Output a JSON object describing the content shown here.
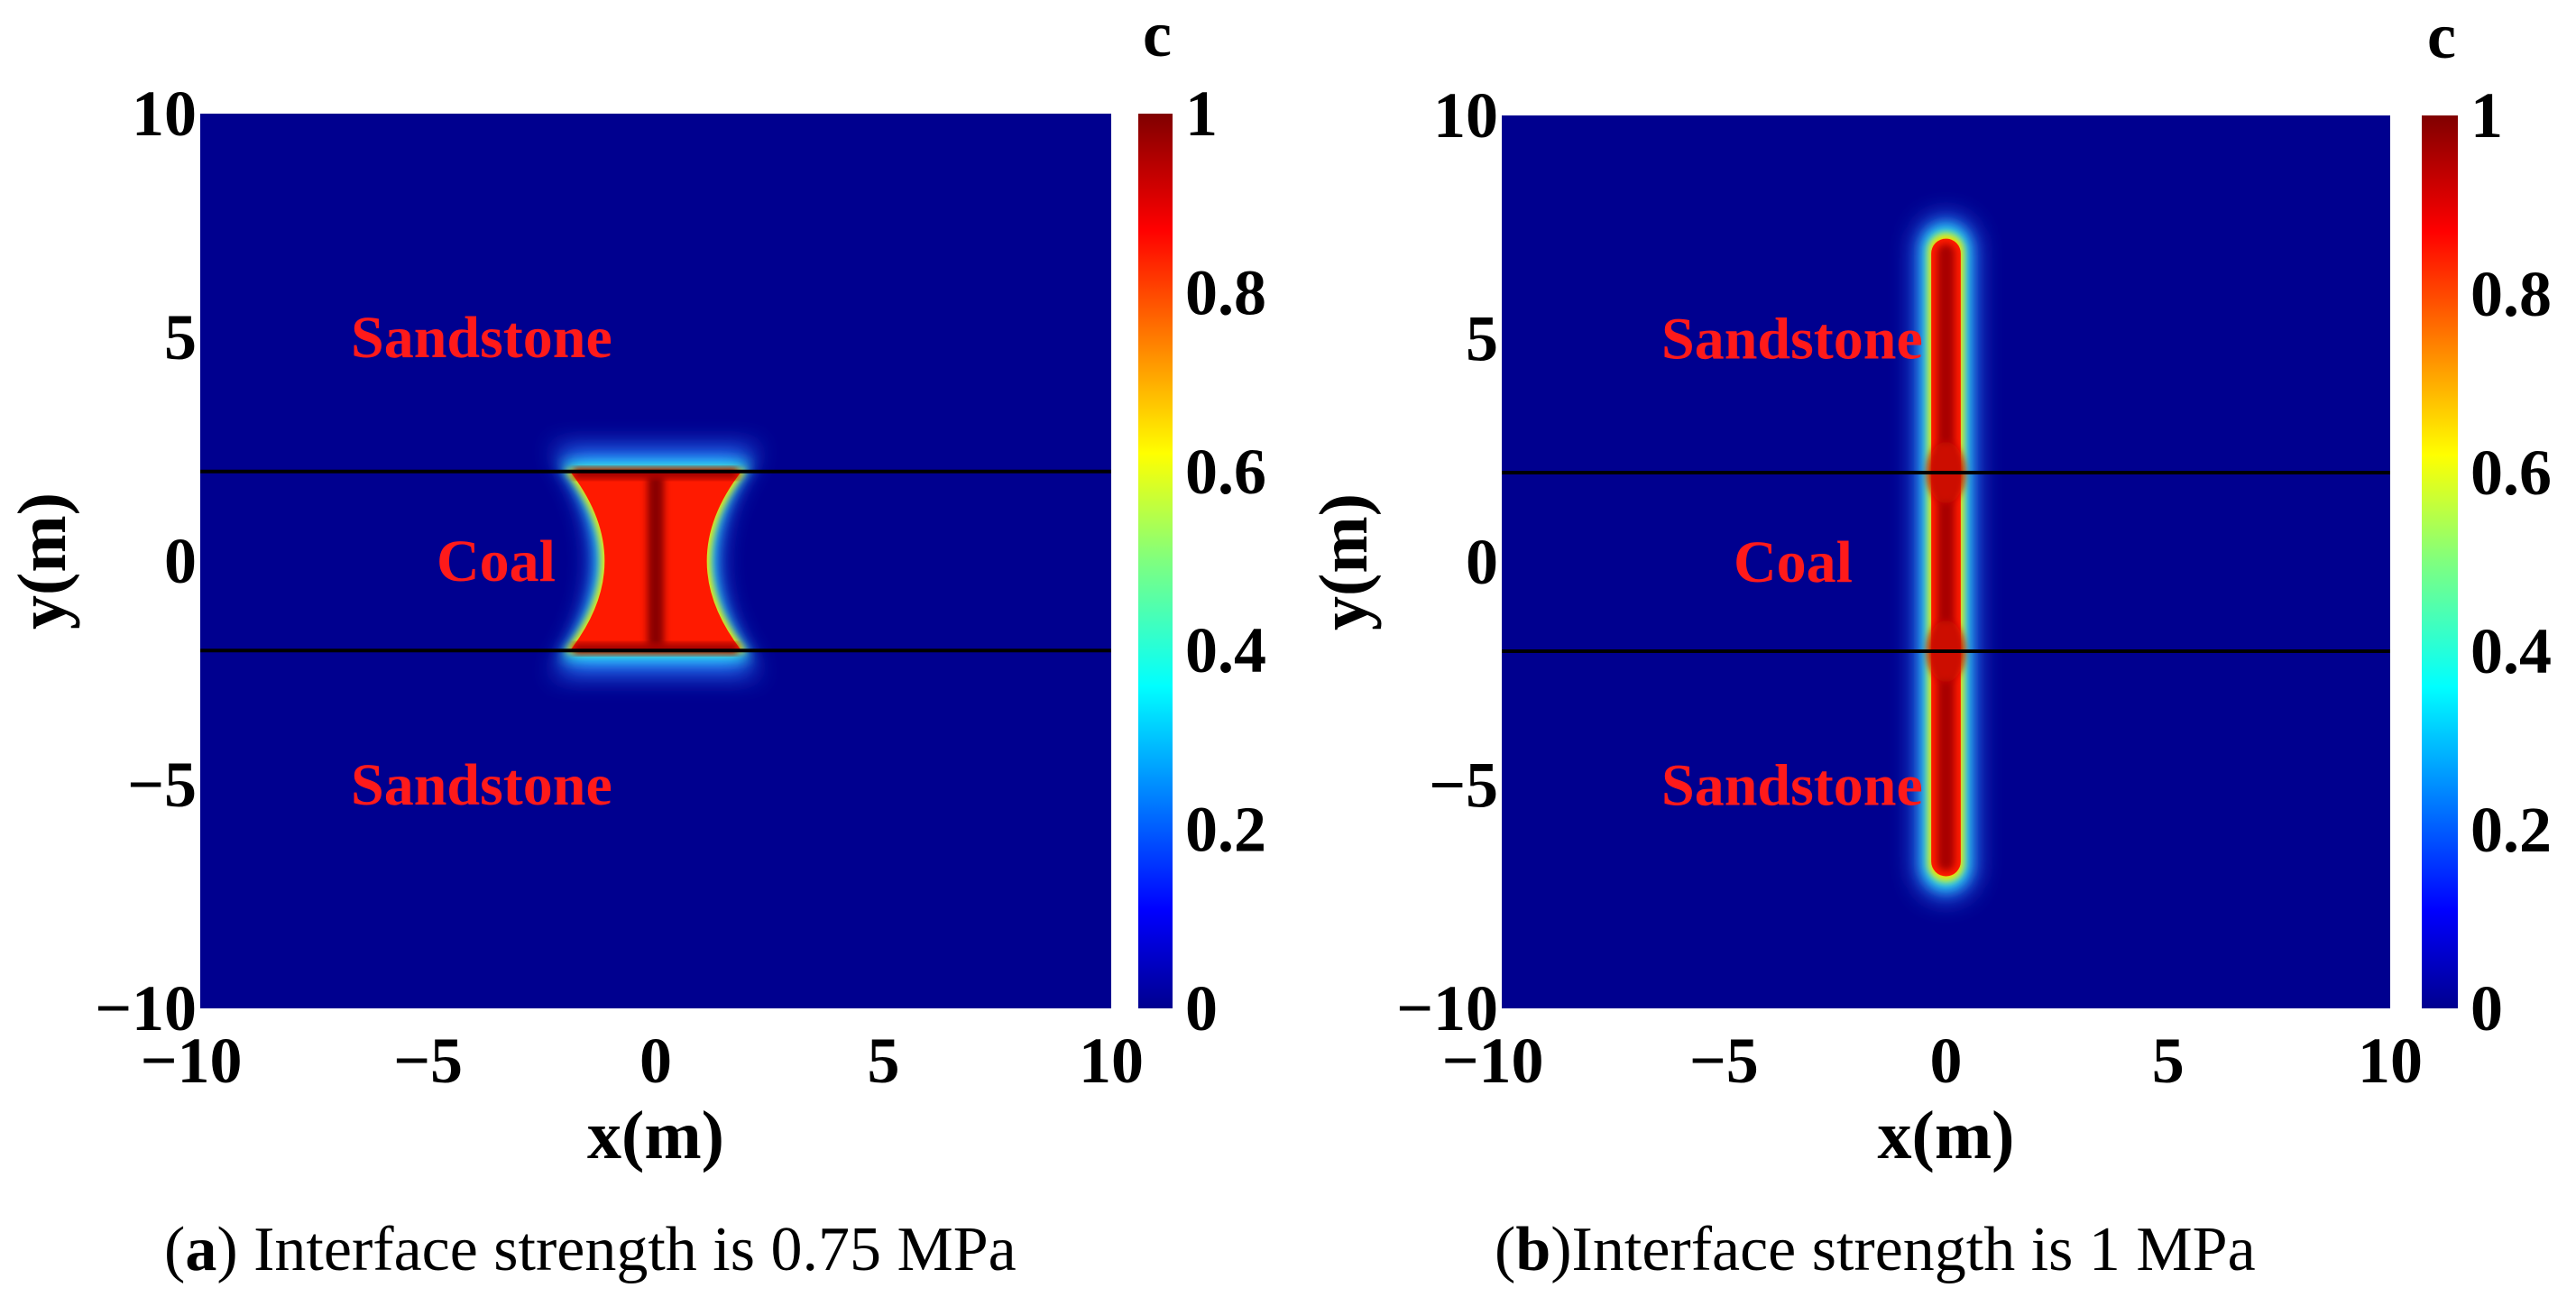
{
  "chart_data": [
    {
      "type": "heatmap",
      "panel_label": "a",
      "caption": ") Interface strength is 0.75 MPa",
      "caption_prefix": "(",
      "xlabel": "x(m)",
      "ylabel": "y(m)",
      "xlim": [
        -10,
        10
      ],
      "ylim": [
        -10,
        10
      ],
      "xticks": [
        -10,
        -5,
        0,
        5,
        10
      ],
      "yticks": [
        -10,
        -5,
        0,
        5,
        10
      ],
      "xtick_labels": [
        "−10",
        "−5",
        "0",
        "5",
        "10"
      ],
      "ytick_labels": [
        "−10",
        "−5",
        "0",
        "5",
        "10"
      ],
      "colorbar": {
        "title": "c",
        "range": [
          0,
          1
        ],
        "ticks": [
          0,
          0.2,
          0.4,
          0.6,
          0.8,
          1
        ],
        "tick_labels": [
          "0",
          "0.2",
          "0.4",
          "0.6",
          "0.8",
          "1"
        ]
      },
      "background_value": 0,
      "interfaces_y": [
        2,
        -2
      ],
      "regions": [
        {
          "label": "Sandstone",
          "x": -6,
          "y": 5
        },
        {
          "label": "Coal",
          "x": -6,
          "y": 0
        },
        {
          "label": "Sandstone",
          "x": -6,
          "y": -5
        }
      ],
      "damage_zone": {
        "shape": "hourglass",
        "x_center": 0,
        "y_min": -2,
        "y_max": 2,
        "half_width_at_interface": 2,
        "half_width_at_center": 0.4,
        "peak_value": 1
      }
    },
    {
      "type": "heatmap",
      "panel_label": "b",
      "caption": ")Interface strength is 1 MPa",
      "caption_prefix": "(",
      "xlabel": "x(m)",
      "ylabel": "y(m)",
      "xlim": [
        -10,
        10
      ],
      "ylim": [
        -10,
        10
      ],
      "xticks": [
        -10,
        -5,
        0,
        5,
        10
      ],
      "yticks": [
        -10,
        -5,
        0,
        5,
        10
      ],
      "xtick_labels": [
        "−10",
        "−5",
        "0",
        "5",
        "10"
      ],
      "ytick_labels": [
        "−10",
        "−5",
        "0",
        "5",
        "10"
      ],
      "colorbar": {
        "title": "c",
        "range": [
          0,
          1
        ],
        "ticks": [
          0,
          0.2,
          0.4,
          0.6,
          0.8,
          1
        ],
        "tick_labels": [
          "0",
          "0.2",
          "0.4",
          "0.6",
          "0.8",
          "1"
        ]
      },
      "background_value": 0,
      "interfaces_y": [
        2,
        -2
      ],
      "regions": [
        {
          "label": "Sandstone",
          "x": -6,
          "y": 5
        },
        {
          "label": "Coal",
          "x": -6,
          "y": 0
        },
        {
          "label": "Sandstone",
          "x": -6,
          "y": -5
        }
      ],
      "damage_zone": {
        "shape": "vertical-band",
        "x_center": 0,
        "y_min": -7,
        "y_max": 7.2,
        "half_width": 0.35,
        "peak_value": 1
      }
    }
  ],
  "colors": {
    "field_low": "#00008f",
    "region_text": "#ff1a1a",
    "interface_line": "#000000"
  }
}
